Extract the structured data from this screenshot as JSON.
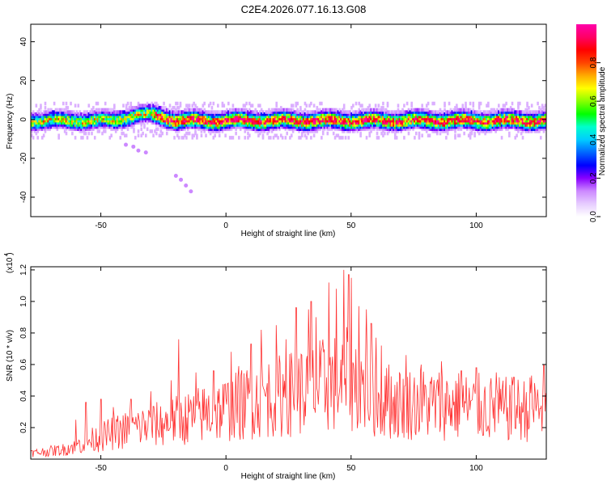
{
  "title": "C2E4.2026.077.16.13.G08",
  "colorbar": {
    "label": "Normalized spectral amplitude",
    "ticks": [
      0.0,
      0.2,
      0.4,
      0.6,
      0.8
    ],
    "tick_labels": [
      "0.0",
      "0.2",
      "0.4",
      "0.6",
      "0.8"
    ],
    "colors": [
      "#ffffff",
      "#e6ccff",
      "#cc88ff",
      "#8800ff",
      "#0000ff",
      "#0066ff",
      "#00ccff",
      "#00ffcc",
      "#00ff00",
      "#88ff00",
      "#ffff00",
      "#ffaa00",
      "#ff4400",
      "#ff0000",
      "#ff0066",
      "#ff00aa"
    ]
  },
  "chart_data": [
    {
      "type": "heatmap",
      "xlabel": "Height of straight line (km)",
      "ylabel": "Frequency (Hz)",
      "xlim": [
        -78,
        128
      ],
      "ylim": [
        -50,
        49
      ],
      "xticks": [
        -50,
        0,
        50,
        100
      ],
      "xtick_labels": [
        "-50",
        "0",
        "50",
        "100"
      ],
      "yticks": [
        -40,
        -20,
        0,
        20,
        40
      ],
      "ytick_labels": [
        "-40",
        "-20",
        "0",
        "20",
        "40"
      ],
      "band_center_hz": 0,
      "band_halfwidth_hz": 4,
      "stray_points": [
        [
          -40,
          -13
        ],
        [
          -37,
          -14
        ],
        [
          -35,
          -16
        ],
        [
          -32,
          -17
        ],
        [
          -20,
          -29
        ],
        [
          -18,
          -31
        ],
        [
          -16,
          -34
        ],
        [
          -14,
          -37
        ]
      ]
    },
    {
      "type": "line",
      "xlabel": "Height of straight line (km)",
      "ylabel": "SNR (10 * v/v)",
      "scale_label": "(x10 )",
      "scale_exponent": "4",
      "color": "#ff3333",
      "xlim": [
        -78,
        128
      ],
      "ylim": [
        0.0,
        1.22
      ],
      "xticks": [
        -50,
        0,
        50,
        100
      ],
      "xtick_labels": [
        "-50",
        "0",
        "50",
        "100"
      ],
      "yticks": [
        0.2,
        0.4,
        0.6,
        0.8,
        1.0,
        1.2
      ],
      "ytick_labels": [
        "0.2",
        "0.4",
        "0.6",
        "0.8",
        "1.0",
        "1.2"
      ],
      "envelope_x": [
        -78,
        -65,
        -55,
        -45,
        -35,
        -25,
        -15,
        -5,
        5,
        15,
        25,
        35,
        45,
        50,
        55,
        62,
        70,
        80,
        90,
        100,
        110,
        120,
        128
      ],
      "envelope_y": [
        0.05,
        0.08,
        0.15,
        0.22,
        0.27,
        0.3,
        0.35,
        0.4,
        0.45,
        0.52,
        0.55,
        0.6,
        0.65,
        0.68,
        0.6,
        0.48,
        0.47,
        0.47,
        0.46,
        0.44,
        0.42,
        0.42,
        0.45
      ],
      "peaks": [
        [
          -60,
          0.25
        ],
        [
          -56,
          0.36
        ],
        [
          -50,
          0.38
        ],
        [
          -45,
          0.33
        ],
        [
          -38,
          0.38
        ],
        [
          -30,
          0.43
        ],
        [
          -22,
          0.5
        ],
        [
          -19,
          0.76
        ],
        [
          -12,
          0.55
        ],
        [
          -5,
          0.56
        ],
        [
          2,
          0.68
        ],
        [
          5,
          0.59
        ],
        [
          10,
          0.73
        ],
        [
          14,
          0.82
        ],
        [
          20,
          0.85
        ],
        [
          24,
          0.76
        ],
        [
          28,
          0.96
        ],
        [
          33,
          0.95
        ],
        [
          34,
          1.0
        ],
        [
          36,
          0.9
        ],
        [
          41,
          1.12
        ],
        [
          44,
          1.08
        ],
        [
          47,
          1.2
        ],
        [
          49,
          1.17
        ],
        [
          50,
          1.15
        ],
        [
          53,
          0.97
        ],
        [
          56,
          0.95
        ],
        [
          58,
          0.86
        ],
        [
          60,
          0.77
        ],
        [
          62,
          0.72
        ],
        [
          65,
          0.6
        ],
        [
          72,
          0.66
        ],
        [
          78,
          0.6
        ],
        [
          86,
          0.62
        ],
        [
          94,
          0.56
        ],
        [
          100,
          0.58
        ],
        [
          108,
          0.55
        ],
        [
          115,
          0.52
        ],
        [
          122,
          0.53
        ],
        [
          127,
          0.6
        ]
      ]
    }
  ]
}
